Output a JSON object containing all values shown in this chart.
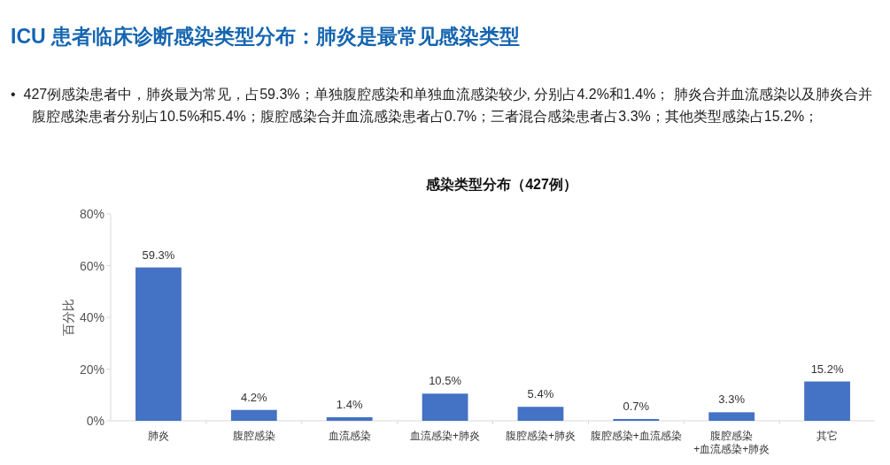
{
  "chart_data": {
    "type": "bar",
    "title": "感染类型分布（427例）",
    "ylabel": "百分比",
    "annotations": [
      "ICU 患者临床诊断感染类型分布：肺炎是最常见感染类型",
      "•  427例感染患者中，肺炎最为常见，占59.3%；单独腹腔感染和单独血流感染较少, 分别占4.2%和1.4%； 肺炎合并血流感染以及肺炎合并腹腔感染患者分别占10.5%和5.4%；腹腔感染合并血流感染患者占0.7%；三者混合感染患者占3.3%；其他类型感染占15.2%；"
    ],
    "categories": [
      "肺炎",
      "腹腔感染",
      "血流感染",
      "血流感染+肺炎",
      "腹腔感染+肺炎",
      "腹腔感染+血流感染",
      "腹腔感染\n+血流感染+肺炎",
      "其它"
    ],
    "values": [
      59.3,
      4.2,
      1.4,
      10.5,
      5.4,
      0.7,
      3.3,
      15.2
    ],
    "value_labels": [
      "59.3%",
      "4.2%",
      "1.4%",
      "10.5%",
      "5.4%",
      "0.7%",
      "3.3%",
      "15.2%"
    ],
    "color": "#4472c4",
    "ylim": [
      0,
      80
    ],
    "yticks": [
      {
        "value": 0,
        "label": "0%"
      },
      {
        "value": 20,
        "label": "20%"
      },
      {
        "value": 40,
        "label": "40%"
      },
      {
        "value": 60,
        "label": "60%"
      },
      {
        "value": 80,
        "label": "80%"
      }
    ],
    "grid": false
  }
}
